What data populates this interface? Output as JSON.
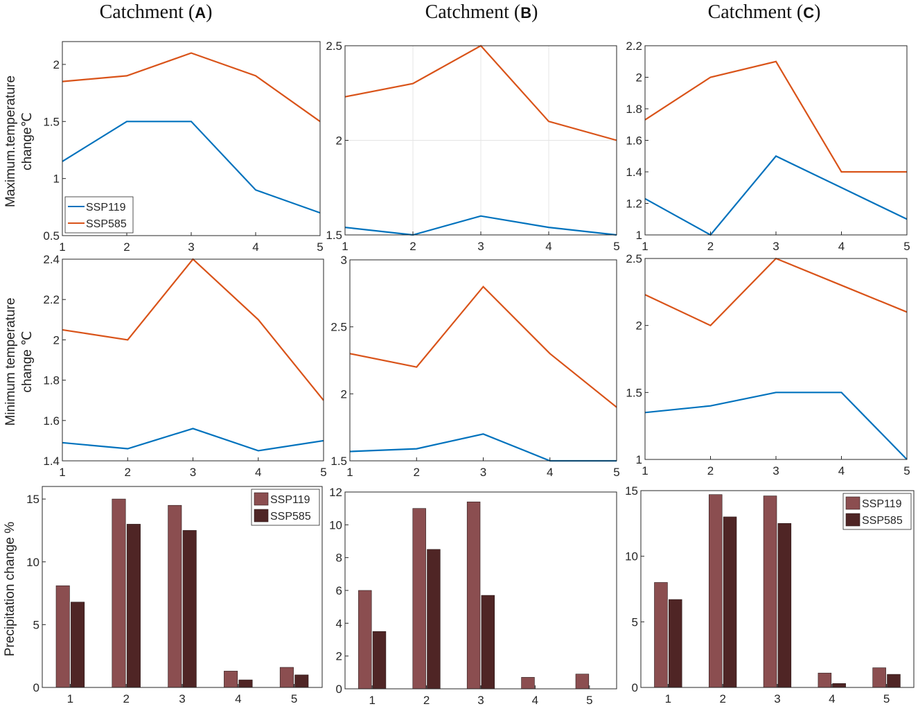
{
  "colors": {
    "ssp119_line": "#0072BD",
    "ssp585_line": "#D95319",
    "ssp119_bar": "#8B4E50",
    "ssp585_bar": "#4F2525",
    "axis": "#262626",
    "grid": "#e4e4e4"
  },
  "titles": [
    {
      "prefix": "Catchment (",
      "letter": "A",
      "suffix": ")"
    },
    {
      "prefix": "Catchment (",
      "letter": "B",
      "suffix": ")"
    },
    {
      "prefix": "Catchment (",
      "letter": "C",
      "suffix": ")"
    }
  ],
  "row_labels": {
    "max_temp": [
      "Maximum.temperature",
      "change℃"
    ],
    "min_temp": [
      "Minimum temperature",
      "change ℃"
    ],
    "precip": [
      "Precipitation change %"
    ]
  },
  "chart_data": [
    {
      "id": "max-A",
      "type": "line",
      "row": "max_temp",
      "catchment": "A",
      "x": [
        1,
        2,
        3,
        4,
        5
      ],
      "xlim": [
        1,
        5
      ],
      "ylim": [
        0.5,
        2.2
      ],
      "xticks": [
        "1",
        "2",
        "3",
        "4",
        "5"
      ],
      "yticks": [
        "0.5",
        "1",
        "1.5",
        "2"
      ],
      "ytick_values": [
        0.5,
        1,
        1.5,
        2
      ],
      "grid": false,
      "legend": "bottom-left",
      "series": [
        {
          "name": "SSP119",
          "values": [
            1.15,
            1.5,
            1.5,
            0.9,
            0.7
          ]
        },
        {
          "name": "SSP585",
          "values": [
            1.85,
            1.9,
            2.1,
            1.9,
            1.5
          ]
        }
      ]
    },
    {
      "id": "max-B",
      "type": "line",
      "row": "max_temp",
      "catchment": "B",
      "x": [
        1,
        2,
        3,
        4,
        5
      ],
      "xlim": [
        1,
        5
      ],
      "ylim": [
        1.5,
        2.5
      ],
      "xticks": [
        "1",
        "2",
        "3",
        "4",
        "5"
      ],
      "yticks": [
        "1.5",
        "2",
        "2.5"
      ],
      "ytick_values": [
        1.5,
        2,
        2.5
      ],
      "grid": true,
      "legend": "none",
      "series": [
        {
          "name": "SSP119",
          "values": [
            1.54,
            1.5,
            1.6,
            1.54,
            1.5
          ]
        },
        {
          "name": "SSP585",
          "values": [
            2.23,
            2.3,
            2.5,
            2.1,
            2.0
          ]
        }
      ]
    },
    {
      "id": "max-C",
      "type": "line",
      "row": "max_temp",
      "catchment": "C",
      "x": [
        1,
        2,
        3,
        4,
        5
      ],
      "xlim": [
        1,
        5
      ],
      "ylim": [
        1,
        2.2
      ],
      "xticks": [
        "1",
        "2",
        "3",
        "4",
        "5"
      ],
      "yticks": [
        "1",
        "1.2",
        "1.4",
        "1.6",
        "1.8",
        "2",
        "2.2"
      ],
      "ytick_values": [
        1,
        1.2,
        1.4,
        1.6,
        1.8,
        2,
        2.2
      ],
      "grid": false,
      "legend": "none",
      "series": [
        {
          "name": "SSP119",
          "values": [
            1.23,
            1.0,
            1.5,
            1.3,
            1.1
          ]
        },
        {
          "name": "SSP585",
          "values": [
            1.73,
            2.0,
            2.1,
            1.4,
            1.4
          ]
        }
      ]
    },
    {
      "id": "min-A",
      "type": "line",
      "row": "min_temp",
      "catchment": "A",
      "x": [
        1,
        2,
        3,
        4,
        5
      ],
      "xlim": [
        1,
        5
      ],
      "ylim": [
        1.4,
        2.4
      ],
      "xticks": [
        "1",
        "2",
        "3",
        "4",
        "5"
      ],
      "yticks": [
        "1.4",
        "1.6",
        "1.8",
        "2",
        "2.2",
        "2.4"
      ],
      "ytick_values": [
        1.4,
        1.6,
        1.8,
        2,
        2.2,
        2.4
      ],
      "grid": false,
      "legend": "none",
      "series": [
        {
          "name": "SSP119",
          "values": [
            1.49,
            1.46,
            1.56,
            1.45,
            1.5
          ]
        },
        {
          "name": "SSP585",
          "values": [
            2.05,
            2.0,
            2.4,
            2.1,
            1.7
          ]
        }
      ]
    },
    {
      "id": "min-B",
      "type": "line",
      "row": "min_temp",
      "catchment": "B",
      "x": [
        1,
        2,
        3,
        4,
        5
      ],
      "xlim": [
        1,
        5
      ],
      "ylim": [
        1.5,
        3
      ],
      "xticks": [
        "1",
        "2",
        "3",
        "4",
        "5"
      ],
      "yticks": [
        "1.5",
        "2",
        "2.5",
        "3"
      ],
      "ytick_values": [
        1.5,
        2,
        2.5,
        3
      ],
      "grid": false,
      "legend": "none",
      "series": [
        {
          "name": "SSP119",
          "values": [
            1.57,
            1.59,
            1.7,
            1.5,
            1.5
          ]
        },
        {
          "name": "SSP585",
          "values": [
            2.3,
            2.2,
            2.8,
            2.3,
            1.9
          ]
        }
      ]
    },
    {
      "id": "min-C",
      "type": "line",
      "row": "min_temp",
      "catchment": "C",
      "x": [
        1,
        2,
        3,
        4,
        5
      ],
      "xlim": [
        1,
        5
      ],
      "ylim": [
        1,
        2.5
      ],
      "xticks": [
        "1",
        "2",
        "3",
        "4",
        "5"
      ],
      "yticks": [
        "1",
        "1.5",
        "2",
        "2.5"
      ],
      "ytick_values": [
        1,
        1.5,
        2,
        2.5
      ],
      "grid": false,
      "legend": "none",
      "series": [
        {
          "name": "SSP119",
          "values": [
            1.35,
            1.4,
            1.5,
            1.5,
            1.0
          ]
        },
        {
          "name": "SSP585",
          "values": [
            2.23,
            2.0,
            2.5,
            2.3,
            2.1
          ]
        }
      ]
    },
    {
      "id": "pr-A",
      "type": "bar",
      "row": "precip",
      "catchment": "A",
      "categories": [
        "1",
        "2",
        "3",
        "4",
        "5"
      ],
      "ylim": [
        0,
        16
      ],
      "yticks": [
        "0",
        "5",
        "10",
        "15"
      ],
      "ytick_values": [
        0,
        5,
        10,
        15
      ],
      "grid": false,
      "legend": "top-right",
      "series": [
        {
          "name": "SSP119",
          "values": [
            8.1,
            15.0,
            14.5,
            1.3,
            1.6
          ]
        },
        {
          "name": "SSP585",
          "values": [
            6.8,
            13.0,
            12.5,
            0.6,
            1.0
          ]
        }
      ]
    },
    {
      "id": "pr-B",
      "type": "bar",
      "row": "precip",
      "catchment": "B",
      "categories": [
        "1",
        "2",
        "3",
        "4",
        "5"
      ],
      "ylim": [
        0,
        12
      ],
      "yticks": [
        "0",
        "2",
        "4",
        "6",
        "8",
        "10",
        "12"
      ],
      "ytick_values": [
        0,
        2,
        4,
        6,
        8,
        10,
        12
      ],
      "grid": false,
      "legend": "none",
      "series": [
        {
          "name": "SSP119",
          "values": [
            6.0,
            11.0,
            11.4,
            0.7,
            0.9
          ]
        },
        {
          "name": "SSP585",
          "values": [
            3.5,
            8.5,
            5.7,
            0.0,
            0.0
          ]
        }
      ]
    },
    {
      "id": "pr-C",
      "type": "bar",
      "row": "precip",
      "catchment": "C",
      "categories": [
        "1",
        "2",
        "3",
        "4",
        "5"
      ],
      "ylim": [
        0,
        15
      ],
      "yticks": [
        "0",
        "5",
        "10",
        "15"
      ],
      "ytick_values": [
        0,
        5,
        10,
        15
      ],
      "grid": false,
      "legend": "top-right",
      "series": [
        {
          "name": "SSP119",
          "values": [
            8.0,
            14.7,
            14.6,
            1.1,
            1.5
          ]
        },
        {
          "name": "SSP585",
          "values": [
            6.7,
            13.0,
            12.5,
            0.3,
            1.0
          ]
        }
      ]
    }
  ]
}
